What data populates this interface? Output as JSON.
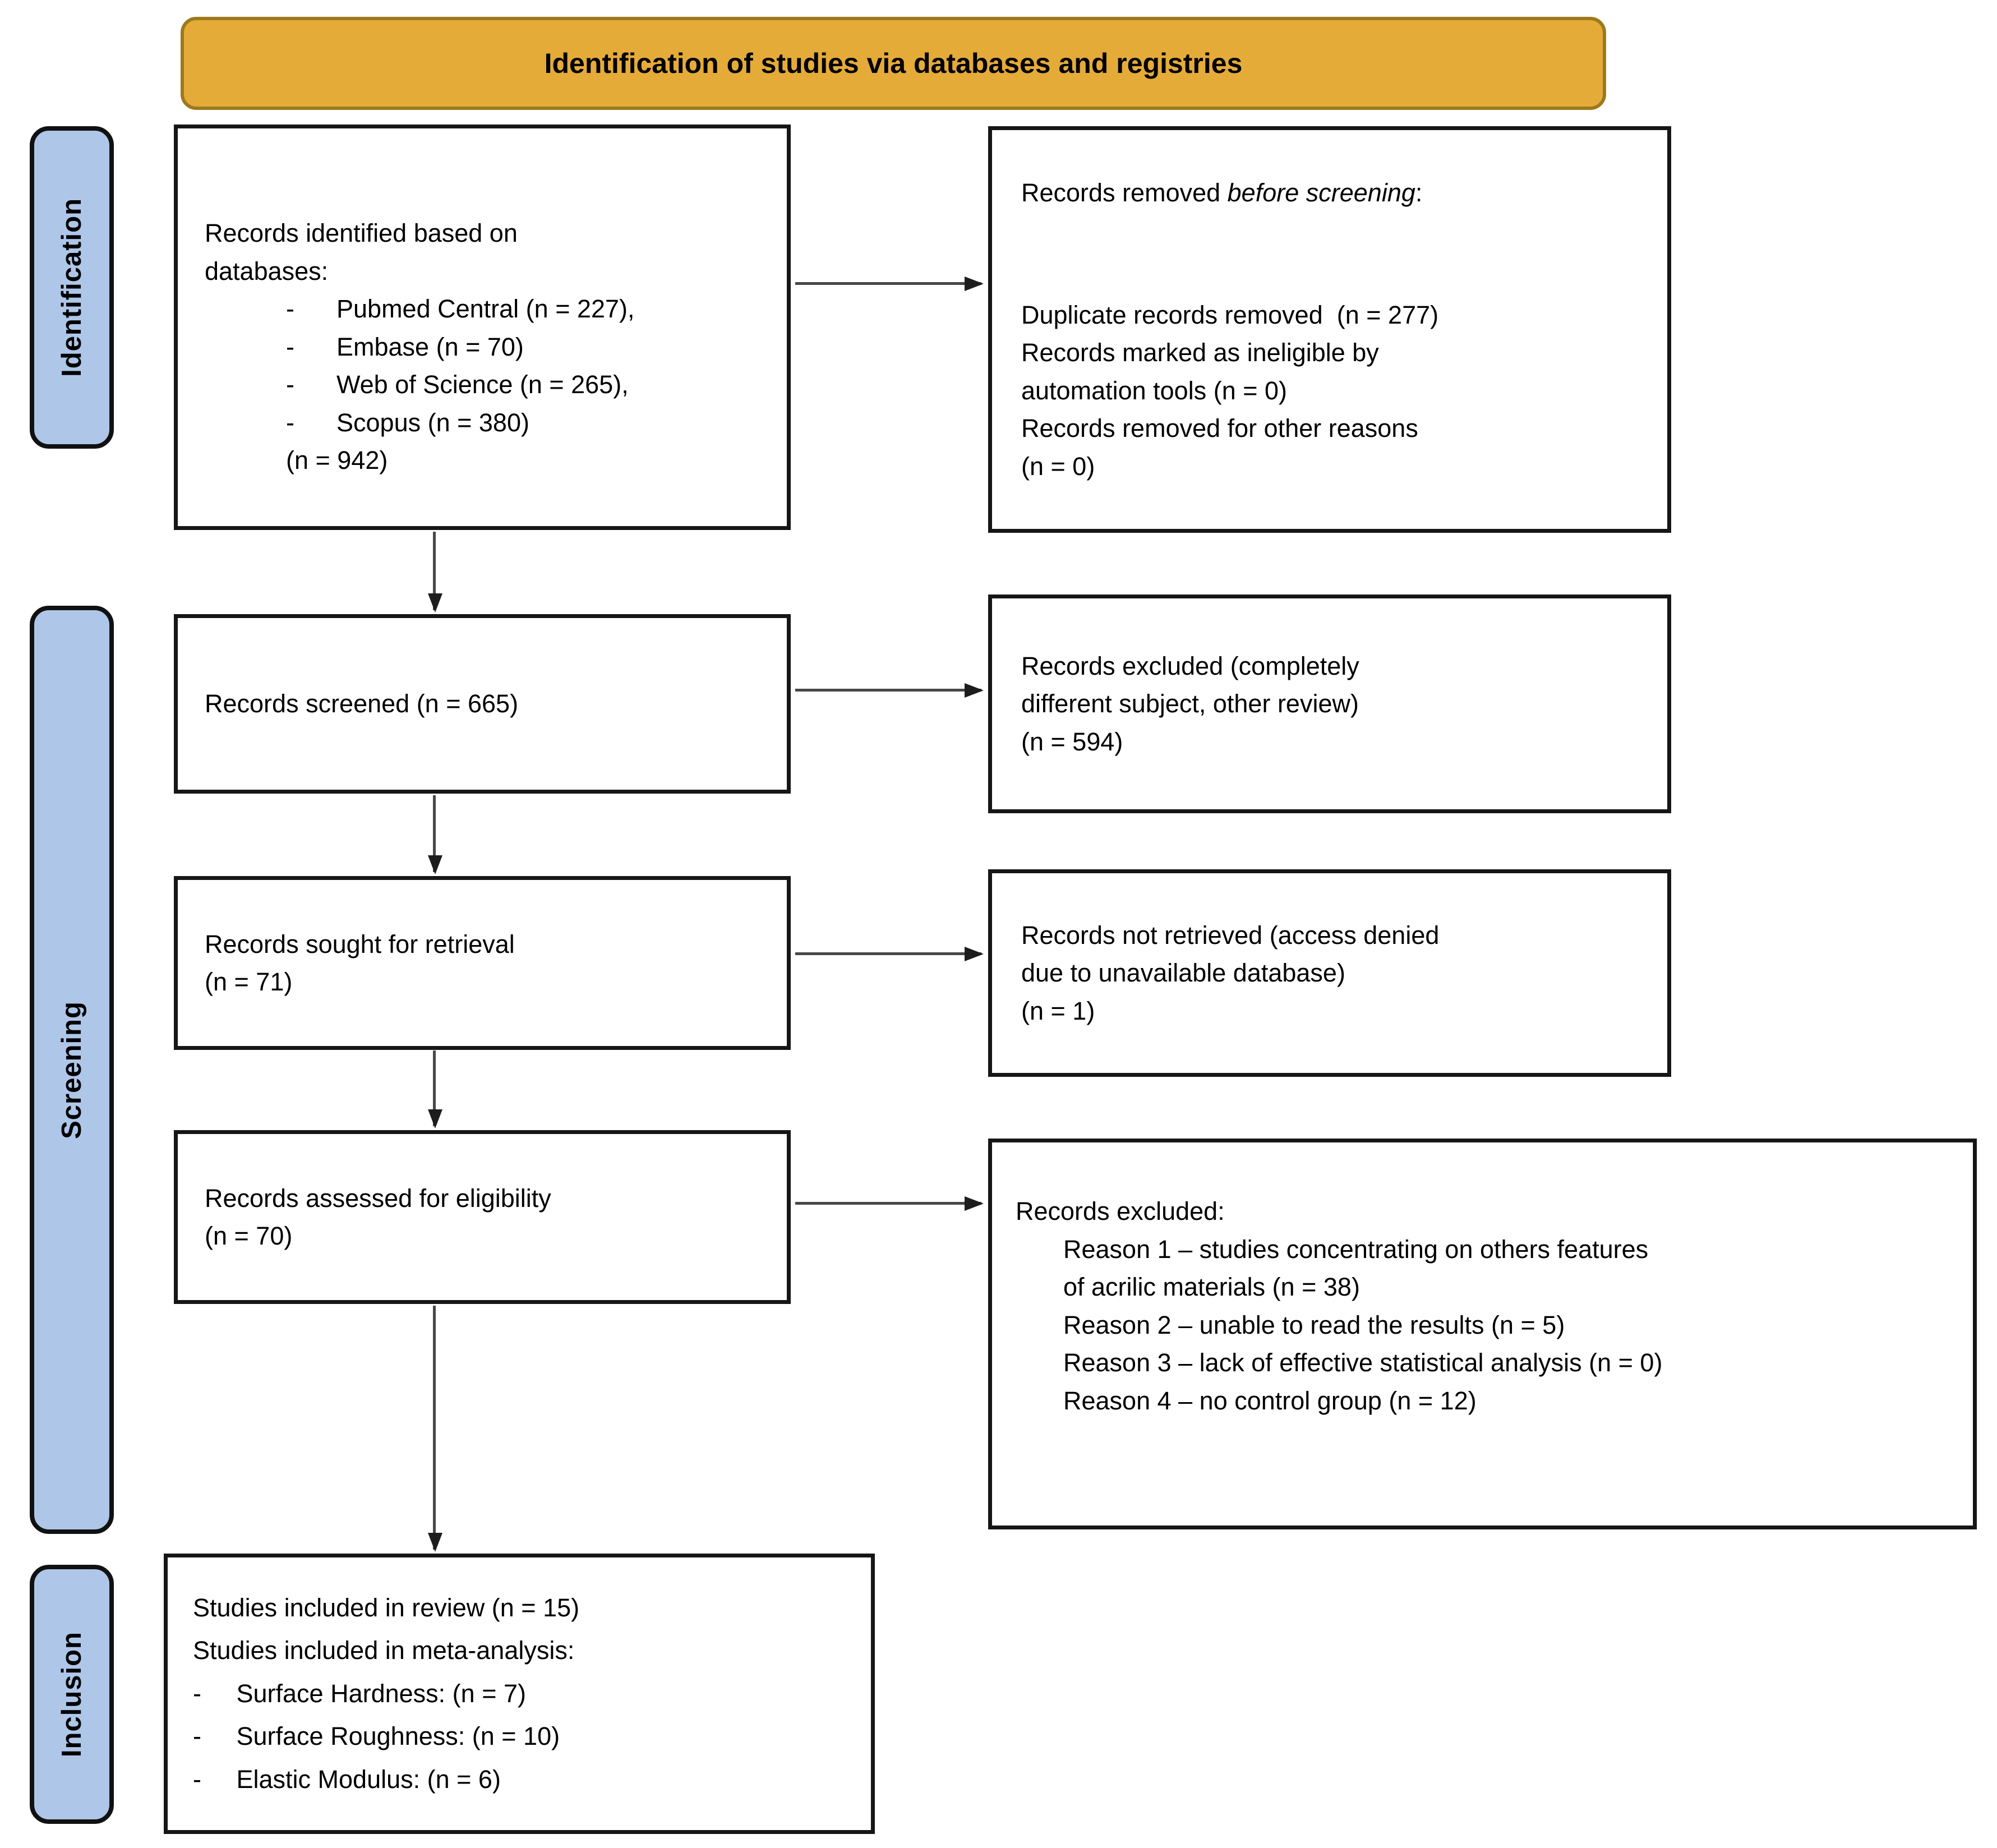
{
  "banner": {
    "title": "Identification of studies via databases and registries"
  },
  "stages": {
    "identification": "Identification",
    "screening": "Screening",
    "inclusion": "Inclusion"
  },
  "boxes": {
    "identified": {
      "head_lines": [
        "Records identified based on",
        "databases:"
      ],
      "list_lines": [
        "-      Pubmed Central (n = 227),",
        "-      Embase (n = 70)",
        "-      Web of Science (n = 265),",
        "-      Scopus (n = 380)",
        "(n = 942)"
      ]
    },
    "removed_before": {
      "heading_prefix": "Records removed ",
      "heading_italic": "before screening",
      "heading_suffix": ":",
      "lines": [
        "Duplicate records removed  (n = 277)",
        "Records marked as ineligible by",
        "automation tools (n = 0)",
        "Records removed for other reasons",
        "(n = 0)"
      ]
    },
    "screened": {
      "lines": [
        "Records screened (n = 665)"
      ]
    },
    "excluded_screening": {
      "lines": [
        "Records excluded (completely",
        "different subject, other review)",
        "(n = 594)"
      ]
    },
    "sought": {
      "lines": [
        "Records sought for retrieval",
        "(n = 71)"
      ]
    },
    "not_retrieved": {
      "lines": [
        "Records not retrieved (access denied",
        "due to unavailable database)",
        "(n = 1)"
      ]
    },
    "assessed": {
      "lines": [
        "Records assessed for eligibility",
        "(n = 70)"
      ]
    },
    "excluded_eligibility": {
      "heading": "Records excluded:",
      "lines": [
        "Reason 1 – studies concentrating on others features",
        "of acrilic materials (n = 38)",
        "Reason 2 – unable to read the results (n = 5)",
        "Reason 3 – lack of effective statistical analysis (n = 0)",
        "Reason 4 – no control group (n = 12)"
      ]
    },
    "included": {
      "lines": [
        "Studies included in review (n = 15)",
        "Studies included in meta-analysis:",
        "-     Surface Hardness: (n = 7)",
        "-     Surface Roughness: (n = 10)",
        "-     Elastic Modulus: (n = 6)"
      ]
    }
  },
  "colors": {
    "banner_bg": "#E5AB39",
    "banner_border": "#9C7A1B",
    "stage_bar_bg": "#AEC6E8",
    "box_border": "#161616",
    "arrow": "#474747",
    "text": "#000000"
  }
}
